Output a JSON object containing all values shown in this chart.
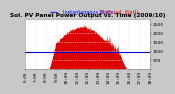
{
  "title": "Sol. PV Panel Power Output vs. Time (2009/10)",
  "legend_blue": "Instantaneous Watts",
  "legend_red": "% on pot. Watts",
  "bg_color": "#c8c8c8",
  "plot_bg": "#ffffff",
  "bar_color": "#dd0000",
  "line_color": "#0000cc",
  "grid_color": "#ffffff",
  "spike_color": "#dd0000",
  "ylim": [
    0,
    2800
  ],
  "xlim": [
    0,
    288
  ],
  "avg_line_y": 950,
  "num_points": 289,
  "peak_x": 130,
  "peak_y": 2300,
  "sigma": 60,
  "noise_scale": 80,
  "yticks": [
    500,
    1000,
    1500,
    2000,
    2500
  ],
  "ytick_labels": [
    "500",
    "1000",
    "1500",
    "2000",
    "2500"
  ],
  "xtick_labels": [
    "6:00",
    "7:00",
    "8:00",
    "9:00",
    "10:00",
    "11:00",
    "12:00",
    "13:00",
    "14:00",
    "15:00",
    "16:00",
    "17:00",
    "18:00"
  ],
  "title_fontsize": 4.2,
  "tick_fontsize": 3.2,
  "legend_fontsize": 3.5
}
